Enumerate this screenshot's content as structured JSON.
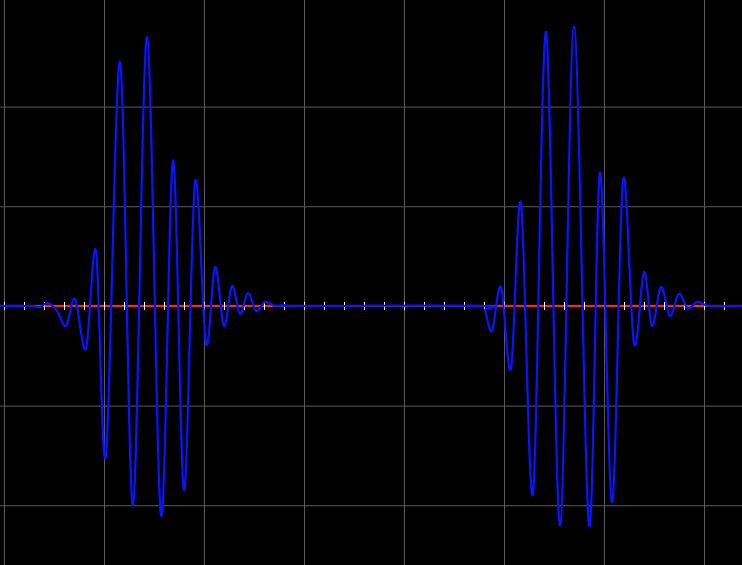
{
  "chart_data": {
    "type": "line",
    "title": "",
    "xlabel": "",
    "ylabel": "",
    "grid": true,
    "xlim": [
      0,
      742
    ],
    "ylim": [
      -2.6,
      3.07
    ],
    "x_gridlines": [
      4,
      104,
      204,
      304,
      404,
      504,
      604,
      704
    ],
    "y_gridlines": [
      2.0,
      1.0,
      0.0,
      -1.0,
      -2.0
    ],
    "axis_tick_spacing": 20,
    "colors": {
      "background": "#000000",
      "grid": "#5a5a5a",
      "signal": "#0a14ff",
      "axis_line": "#ff2a1a",
      "ticks": "#ffffff"
    },
    "series": [
      {
        "points": [
          [
            0,
            0.0
          ],
          [
            30,
            0.0
          ],
          [
            40,
            -0.01
          ],
          [
            48,
            0.03
          ],
          [
            57,
            -0.05
          ],
          [
            66,
            -0.2
          ],
          [
            75,
            0.07
          ],
          [
            86,
            -0.43
          ],
          [
            96,
            0.55
          ],
          [
            106,
            -1.5
          ],
          [
            120,
            2.45
          ],
          [
            133,
            -2.0
          ],
          [
            147,
            2.7
          ],
          [
            161,
            -2.1
          ],
          [
            173,
            1.46
          ],
          [
            184,
            -1.85
          ],
          [
            195,
            1.24
          ],
          [
            206,
            -0.38
          ],
          [
            215,
            0.39
          ],
          [
            224,
            -0.2
          ],
          [
            232,
            0.2
          ],
          [
            240,
            -0.08
          ],
          [
            248,
            0.13
          ],
          [
            256,
            -0.05
          ],
          [
            265,
            0.04
          ],
          [
            275,
            0.0
          ],
          [
            285,
            0.01
          ],
          [
            300,
            0.0
          ],
          [
            480,
            0.0
          ],
          [
            485,
            -0.05
          ],
          [
            492,
            -0.25
          ],
          [
            501,
            0.19
          ],
          [
            511,
            -0.63
          ],
          [
            521,
            1.03
          ],
          [
            533,
            -1.88
          ],
          [
            546,
            2.75
          ],
          [
            560,
            -2.2
          ],
          [
            574,
            2.8
          ],
          [
            589,
            -2.2
          ],
          [
            600,
            1.34
          ],
          [
            612,
            -1.97
          ],
          [
            623,
            1.26
          ],
          [
            634,
            -0.38
          ],
          [
            644,
            0.34
          ],
          [
            652,
            -0.2
          ],
          [
            661,
            0.19
          ],
          [
            670,
            -0.1
          ],
          [
            679,
            0.12
          ],
          [
            688,
            -0.03
          ],
          [
            697,
            0.04
          ],
          [
            710,
            0.0
          ],
          [
            742,
            0.0
          ]
        ]
      }
    ]
  }
}
